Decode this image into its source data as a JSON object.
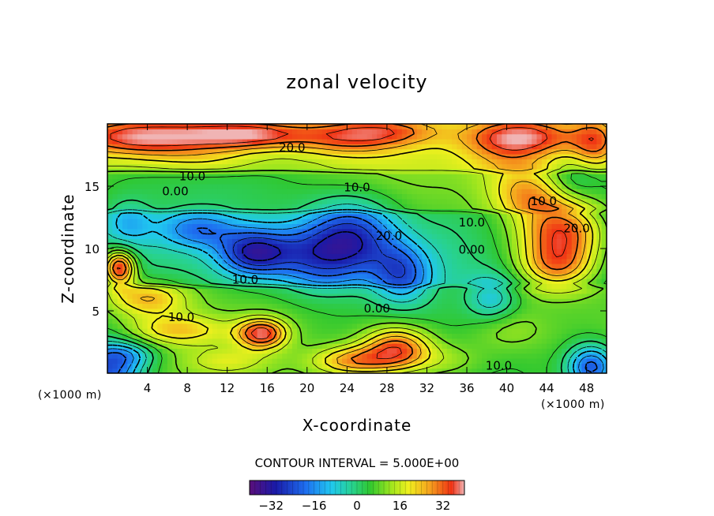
{
  "chart_data": {
    "type": "heatmap",
    "title": "zonal velocity",
    "xlabel": "X-coordinate",
    "ylabel": "Z-coordinate",
    "x_unit": "(×1000 m)",
    "z_unit": "(×1000 m)",
    "xlim": [
      0,
      50
    ],
    "ylim": [
      0,
      20
    ],
    "x_ticks": [
      4,
      8,
      12,
      16,
      20,
      24,
      28,
      32,
      36,
      40,
      44,
      48
    ],
    "y_ticks": [
      5,
      10,
      15
    ],
    "contour_interval_text": "CONTOUR INTERVAL = 5.000E+00",
    "colorbar": {
      "range": [
        -40,
        40
      ],
      "ticks": [
        -32,
        -16,
        0,
        16,
        32
      ],
      "tick_labels": [
        "−32",
        "−16",
        "0",
        "16",
        "32"
      ]
    },
    "contour_labels": [
      {
        "text": "20.0",
        "x": 18.5,
        "z": 18.1
      },
      {
        "text": "10.0",
        "x": 8.5,
        "z": 15.8
      },
      {
        "text": "0.00",
        "x": 6.8,
        "z": 14.6
      },
      {
        "text": "10.0",
        "x": 25.0,
        "z": 14.9
      },
      {
        "text": "10.0",
        "x": 36.5,
        "z": 12.1
      },
      {
        "text": "0.00",
        "x": 36.5,
        "z": 9.9
      },
      {
        "text": "20.0",
        "x": 28.2,
        "z": 11.0
      },
      {
        "text": "10.0",
        "x": 13.8,
        "z": 7.5
      },
      {
        "text": "10.0",
        "x": 7.4,
        "z": 4.5
      },
      {
        "text": "0.00",
        "x": 27.0,
        "z": 5.2
      },
      {
        "text": "10.0",
        "x": 39.2,
        "z": 0.6
      },
      {
        "text": "10.0",
        "x": 43.7,
        "z": 13.8
      },
      {
        "text": "20.0",
        "x": 47.0,
        "z": 11.6
      }
    ],
    "features": [
      {
        "x": 0,
        "z": 0,
        "value": -25,
        "rx": 3.5,
        "rz": 2.5
      },
      {
        "x": 4,
        "z": 19,
        "value": 34,
        "rx": 8,
        "rz": 1.6
      },
      {
        "x": 14,
        "z": 19.2,
        "value": 30,
        "rx": 6,
        "rz": 1.2
      },
      {
        "x": 24,
        "z": 19.0,
        "value": 26,
        "rx": 6,
        "rz": 1.5
      },
      {
        "x": 29,
        "z": 19.5,
        "value": 18,
        "rx": 5,
        "rz": 1.1
      },
      {
        "x": 42,
        "z": 19.0,
        "value": 30,
        "rx": 6,
        "rz": 1.6
      },
      {
        "x": 49,
        "z": 18.5,
        "value": 24,
        "rx": 2.5,
        "rz": 2.2
      },
      {
        "x": 40,
        "z": 17.5,
        "value": 14,
        "rx": 4,
        "rz": 2.5
      },
      {
        "x": 10,
        "z": 17.0,
        "value": 12,
        "rx": 6,
        "rz": 1.2
      },
      {
        "x": 24,
        "z": 16.0,
        "value": 6,
        "rx": 8,
        "rz": 1.5
      },
      {
        "x": 2,
        "z": 12.0,
        "value": -12,
        "rx": 2.5,
        "rz": 2.0
      },
      {
        "x": 9,
        "z": 11.5,
        "value": -18,
        "rx": 4,
        "rz": 1.5
      },
      {
        "x": 14.5,
        "z": 9.6,
        "value": -26,
        "rx": 3.5,
        "rz": 1.8
      },
      {
        "x": 19,
        "z": 10.0,
        "value": -14,
        "rx": 5,
        "rz": 2.0
      },
      {
        "x": 24.5,
        "z": 10.8,
        "value": -28,
        "rx": 4.5,
        "rz": 3.0
      },
      {
        "x": 29.5,
        "z": 8.0,
        "value": -22,
        "rx": 3.0,
        "rz": 2.5
      },
      {
        "x": 21,
        "z": 8.0,
        "value": -10,
        "rx": 4,
        "rz": 2.0
      },
      {
        "x": 38.5,
        "z": 6.0,
        "value": -12,
        "rx": 2.5,
        "rz": 1.8
      },
      {
        "x": 34,
        "z": 10.0,
        "value": -2,
        "rx": 3,
        "rz": 3.5
      },
      {
        "x": 1.2,
        "z": 8.5,
        "value": 36,
        "rx": 1.6,
        "rz": 1.4
      },
      {
        "x": 4,
        "z": 6.0,
        "value": 22,
        "rx": 4,
        "rz": 1.4
      },
      {
        "x": 45.5,
        "z": 11.5,
        "value": 32,
        "rx": 4.5,
        "rz": 2.5
      },
      {
        "x": 45,
        "z": 8.5,
        "value": 24,
        "rx": 4,
        "rz": 2.0
      },
      {
        "x": 42,
        "z": 14.5,
        "value": 20,
        "rx": 3.5,
        "rz": 2.0
      },
      {
        "x": 47,
        "z": 15.5,
        "value": -4,
        "rx": 2.5,
        "rz": 1.5
      },
      {
        "x": 15.5,
        "z": 3.2,
        "value": 34,
        "rx": 2.5,
        "rz": 1.2
      },
      {
        "x": 7,
        "z": 3.5,
        "value": 20,
        "rx": 5,
        "rz": 1.2
      },
      {
        "x": 29,
        "z": 2.0,
        "value": 30,
        "rx": 3.5,
        "rz": 1.8
      },
      {
        "x": 24.5,
        "z": 1.0,
        "value": 24,
        "rx": 4,
        "rz": 1.2
      },
      {
        "x": 34,
        "z": 1.0,
        "value": 10,
        "rx": 4,
        "rz": 1.5
      },
      {
        "x": 48.5,
        "z": 0.5,
        "value": -26,
        "rx": 2.5,
        "rz": 1.8
      },
      {
        "x": 40,
        "z": 3.5,
        "value": 10,
        "rx": 4,
        "rz": 1.8
      },
      {
        "x": 12,
        "z": 1.0,
        "value": 14,
        "rx": 4,
        "rz": 1.0
      },
      {
        "x": 2,
        "z": 1.5,
        "value": -8,
        "rx": 3,
        "rz": 1.0
      }
    ]
  }
}
